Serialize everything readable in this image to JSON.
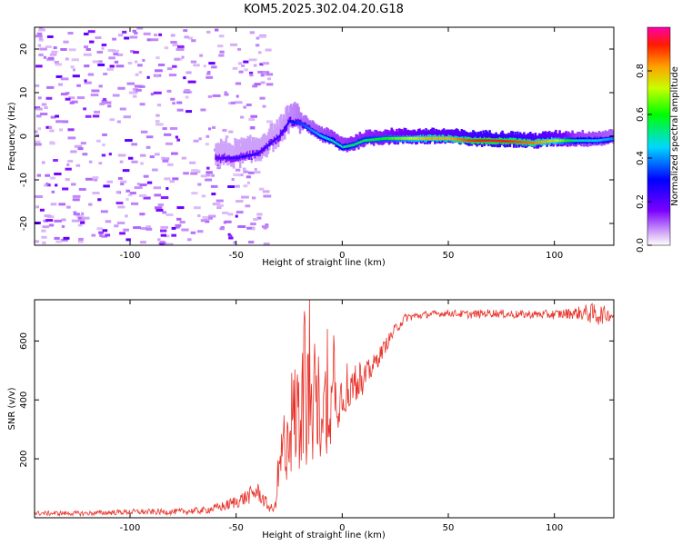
{
  "title": "KOM5.2025.302.04.20.G18",
  "colors": {
    "snr_line": "#e8332a",
    "axis": "#000000"
  },
  "chart_data": [
    {
      "type": "heatmap",
      "title": "KOM5.2025.302.04.20.G18",
      "xlabel": "Height of straight line (km)",
      "ylabel": "Frequency (Hz)",
      "xlim": [
        -145,
        128
      ],
      "ylim": [
        -25,
        25
      ],
      "x_ticks": [
        -100,
        -50,
        0,
        50,
        100
      ],
      "x_tick_labels": [
        "-100",
        "-50",
        "0",
        "50",
        "100"
      ],
      "y_ticks": [
        -20,
        -10,
        0,
        10,
        20
      ],
      "y_tick_labels": [
        "-20",
        "-10",
        "0",
        "10",
        "20"
      ],
      "colorbar": {
        "label": "Normalized spectral amplitude",
        "range": [
          0,
          1
        ],
        "ticks": [
          0.0,
          0.2,
          0.4,
          0.6,
          0.8
        ],
        "tick_labels": [
          "0.0",
          "0.2",
          "0.4",
          "0.6",
          "0.8"
        ]
      },
      "ridge": {
        "x": [
          -60,
          -50,
          -40,
          -30,
          -25,
          -20,
          -15,
          -10,
          -5,
          0,
          5,
          10,
          20,
          30,
          40,
          50,
          60,
          70,
          80,
          90,
          100,
          110,
          120,
          128
        ],
        "freq": [
          -5,
          -5,
          -4,
          0,
          3.5,
          3,
          1.5,
          0,
          -1,
          -2.5,
          -2,
          -1,
          -0.5,
          -0.5,
          -0.5,
          -0.5,
          -1,
          -1,
          -1.2,
          -1.5,
          -1,
          -1,
          -1,
          -0.5
        ],
        "amp": [
          0.2,
          0.25,
          0.25,
          0.25,
          0.3,
          0.35,
          0.4,
          0.45,
          0.5,
          0.5,
          0.55,
          0.55,
          0.6,
          0.7,
          0.8,
          0.8,
          0.9,
          0.95,
          0.9,
          0.85,
          0.75,
          0.5,
          0.45,
          0.4
        ]
      }
    },
    {
      "type": "line",
      "xlabel": "Height of straight line (km)",
      "ylabel": "SNR (v/v)",
      "xlim": [
        -145,
        128
      ],
      "ylim": [
        0,
        740
      ],
      "x_ticks": [
        -100,
        -50,
        0,
        50,
        100
      ],
      "x_tick_labels": [
        "-100",
        "-50",
        "0",
        "50",
        "100"
      ],
      "y_ticks": [
        200,
        400,
        600
      ],
      "y_tick_labels": [
        "200",
        "400",
        "600"
      ],
      "series": [
        {
          "name": "SNR",
          "x": [
            -145,
            -120,
            -100,
            -80,
            -65,
            -55,
            -45,
            -40,
            -35,
            -32,
            -30,
            -25,
            -20,
            -15,
            -10,
            -5,
            0,
            5,
            10,
            15,
            20,
            25,
            30,
            40,
            50,
            60,
            70,
            80,
            90,
            100,
            110,
            115,
            120,
            125,
            128
          ],
          "y": [
            15,
            15,
            20,
            20,
            25,
            40,
            70,
            90,
            40,
            25,
            150,
            320,
            360,
            380,
            380,
            380,
            420,
            440,
            470,
            520,
            580,
            640,
            680,
            690,
            695,
            690,
            695,
            690,
            690,
            690,
            695,
            695,
            690,
            690,
            685
          ],
          "noise": [
            8,
            8,
            10,
            10,
            12,
            18,
            28,
            32,
            20,
            10,
            90,
            180,
            220,
            200,
            190,
            140,
            80,
            60,
            50,
            35,
            25,
            20,
            15,
            12,
            12,
            14,
            14,
            14,
            14,
            16,
            20,
            30,
            40,
            25,
            10
          ]
        }
      ]
    }
  ]
}
